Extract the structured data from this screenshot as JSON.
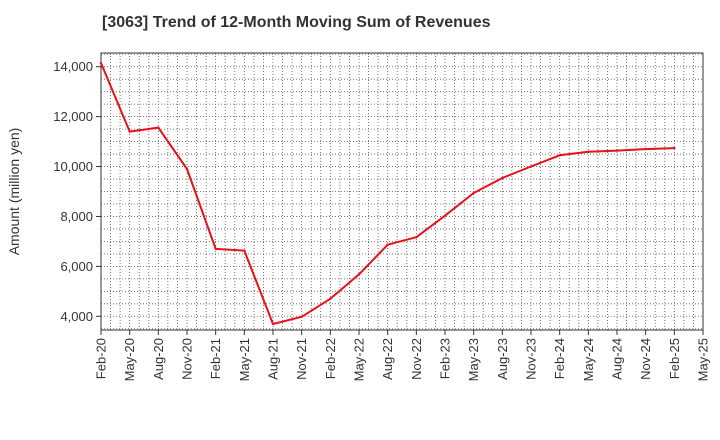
{
  "chart_data": {
    "type": "line",
    "title": "[3063]  Trend of 12-Month Moving Sum of Revenues",
    "xlabel": "",
    "ylabel": "Amount (million yen)",
    "x": [
      "Feb-20",
      "May-20",
      "Aug-20",
      "Nov-20",
      "Feb-21",
      "May-21",
      "Aug-21",
      "Nov-21",
      "Feb-22",
      "May-22",
      "Aug-22",
      "Nov-22",
      "Feb-23",
      "May-23",
      "Aug-23",
      "Nov-23",
      "Feb-24",
      "May-24",
      "Aug-24",
      "Nov-24",
      "Feb-25",
      "May-25"
    ],
    "series": [
      {
        "name": "",
        "color": "#e8101a",
        "values": [
          14150,
          11400,
          11560,
          9900,
          6700,
          6630,
          3690,
          3980,
          4700,
          5680,
          6870,
          7170,
          8030,
          8940,
          9540,
          10000,
          10450,
          10590,
          10640,
          10700,
          10740,
          null
        ]
      }
    ],
    "yticks": [
      4000,
      6000,
      8000,
      10000,
      12000,
      14000
    ],
    "ytick_labels": [
      "4,000",
      "6,000",
      "8,000",
      "10,000",
      "12,000",
      "14,000"
    ],
    "ylim": [
      3450,
      14550
    ],
    "grid": true,
    "legend": "none"
  }
}
